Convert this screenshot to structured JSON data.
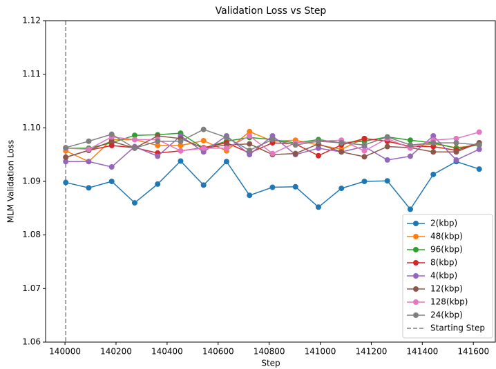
{
  "chart_data": {
    "type": "line",
    "title": "Validation Loss vs Step",
    "xlabel": "Step",
    "ylabel": "MLM Validation Loss",
    "x": [
      140003,
      140093,
      140183,
      140273,
      140363,
      140453,
      140543,
      140633,
      140723,
      140813,
      140903,
      140993,
      141083,
      141173,
      141263,
      141353,
      141443,
      141533,
      141623
    ],
    "series": [
      {
        "name": "2(kbp)",
        "color": "#1f77b4",
        "values": [
          1.0898,
          1.0888,
          1.09,
          1.086,
          1.0895,
          1.0938,
          1.0893,
          1.0937,
          1.0874,
          1.0889,
          1.089,
          1.0852,
          1.0887,
          1.09,
          1.0901,
          1.0848,
          1.0913,
          1.0937,
          1.0923
        ]
      },
      {
        "name": "48(kbp)",
        "color": "#ff7f0e",
        "values": [
          1.0957,
          1.0937,
          1.0978,
          1.0978,
          1.0967,
          1.0967,
          1.0976,
          1.0957,
          1.0993,
          1.0975,
          1.0977,
          1.0968,
          1.096,
          1.098,
          1.0975,
          1.0965,
          1.097,
          1.0963,
          1.0968
        ]
      },
      {
        "name": "96(kbp)",
        "color": "#2ca02c",
        "values": [
          1.0962,
          1.0962,
          1.0972,
          1.0986,
          1.0987,
          1.099,
          1.0962,
          1.0975,
          1.0982,
          1.0978,
          1.0972,
          1.0978,
          1.0972,
          1.0975,
          1.0983,
          1.0977,
          1.0972,
          1.0962,
          1.0968
        ]
      },
      {
        "name": "8(kbp)",
        "color": "#d62728",
        "values": [
          1.0945,
          1.0958,
          1.0967,
          1.0963,
          1.0953,
          1.0957,
          1.0963,
          1.0972,
          1.0953,
          1.0972,
          1.097,
          1.0948,
          1.0968,
          1.098,
          1.0975,
          1.0965,
          1.0965,
          1.0958,
          1.0972
        ]
      },
      {
        "name": "4(kbp)",
        "color": "#9467bd",
        "values": [
          1.0937,
          1.0937,
          1.0927,
          1.0965,
          1.0947,
          1.0985,
          1.0955,
          1.0985,
          1.095,
          1.0985,
          1.095,
          1.0962,
          1.0955,
          1.0965,
          1.094,
          1.0947,
          1.0985,
          1.094,
          1.096
        ]
      },
      {
        "name": "12(kbp)",
        "color": "#8c564b",
        "values": [
          1.0945,
          1.0958,
          1.0975,
          1.0962,
          1.0985,
          1.098,
          1.0962,
          1.0968,
          1.097,
          1.095,
          1.0952,
          1.097,
          1.0955,
          1.0946,
          1.0965,
          1.0963,
          1.0955,
          1.0955,
          1.0972
        ]
      },
      {
        "name": "128(kbp)",
        "color": "#e377c2",
        "values": [
          1.0962,
          1.096,
          1.0983,
          1.0978,
          1.0978,
          1.0957,
          1.0962,
          1.0962,
          1.0985,
          1.0952,
          1.0972,
          1.0975,
          1.0977,
          1.0957,
          1.098,
          1.0962,
          1.0977,
          1.098,
          1.0992
        ]
      },
      {
        "name": "24(kbp)",
        "color": "#7f7f7f",
        "values": [
          1.0963,
          1.0975,
          1.0988,
          1.0962,
          1.0975,
          1.0975,
          1.0997,
          1.0982,
          1.0958,
          1.0978,
          1.0968,
          1.0975,
          1.0972,
          1.0968,
          1.0983,
          1.0968,
          1.0972,
          1.0972,
          1.0968
        ]
      }
    ],
    "vline": {
      "name": "Starting Step",
      "x": 140003,
      "color": "#7f7f7f"
    },
    "xlim": [
      139924,
      141686
    ],
    "ylim": [
      1.06,
      1.12
    ],
    "xticks": [
      140000,
      140200,
      140400,
      140600,
      140800,
      141000,
      141200,
      141400,
      141600
    ],
    "yticks": [
      1.06,
      1.07,
      1.08,
      1.09,
      {
        "value": 1.1,
        "label": "1.10"
      },
      1.11,
      1.12
    ],
    "legend": "lower right"
  }
}
